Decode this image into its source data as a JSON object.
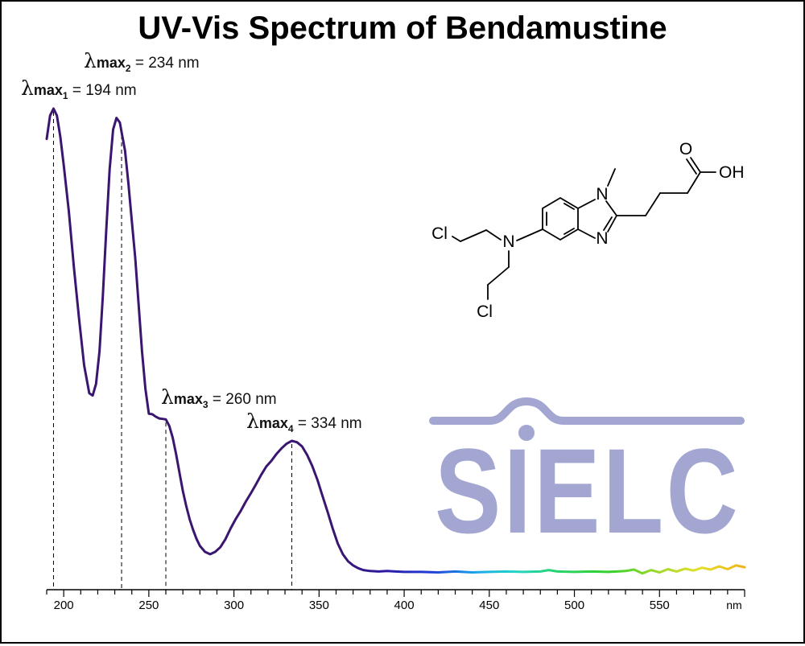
{
  "chart_data": {
    "type": "line",
    "title": "UV-Vis Spectrum of Bendamustine",
    "xlabel": "nm",
    "ylabel": "",
    "xlim": [
      190,
      600
    ],
    "ylim": [
      0,
      1
    ],
    "x_ticks": [
      200,
      250,
      300,
      350,
      400,
      450,
      500,
      550
    ],
    "grid": false,
    "series": [
      {
        "x": [
          190,
          192,
          194,
          196,
          198,
          200,
          203,
          206,
          209,
          212,
          215,
          217,
          219,
          221,
          223,
          225,
          227,
          229,
          231,
          233,
          234,
          236,
          238,
          240,
          242,
          244,
          246,
          248,
          250,
          252,
          254,
          256,
          258,
          260,
          262,
          264,
          266,
          268,
          270,
          272,
          274,
          276,
          278,
          280,
          283,
          286,
          289,
          292,
          295,
          298,
          301,
          304,
          307,
          310,
          313,
          316,
          319,
          322,
          325,
          328,
          331,
          334,
          337,
          340,
          343,
          346,
          349,
          352,
          355,
          358,
          361,
          364,
          367,
          370,
          373,
          376,
          380,
          385,
          390,
          395,
          400,
          410,
          420,
          430,
          440,
          450,
          460,
          470,
          480,
          485,
          490,
          500,
          510,
          520,
          530,
          535,
          540,
          545,
          550,
          555,
          560,
          565,
          570,
          575,
          580,
          585,
          590,
          595,
          600
        ],
        "y": [
          0.935,
          0.985,
          1.0,
          0.985,
          0.94,
          0.88,
          0.78,
          0.66,
          0.55,
          0.45,
          0.39,
          0.385,
          0.41,
          0.48,
          0.6,
          0.74,
          0.87,
          0.955,
          0.98,
          0.97,
          0.95,
          0.91,
          0.84,
          0.76,
          0.68,
          0.58,
          0.48,
          0.4,
          0.346,
          0.345,
          0.34,
          0.336,
          0.335,
          0.334,
          0.32,
          0.295,
          0.26,
          0.22,
          0.18,
          0.148,
          0.12,
          0.097,
          0.078,
          0.063,
          0.05,
          0.045,
          0.05,
          0.06,
          0.077,
          0.1,
          0.12,
          0.138,
          0.158,
          0.176,
          0.195,
          0.215,
          0.233,
          0.245,
          0.26,
          0.272,
          0.282,
          0.288,
          0.285,
          0.276,
          0.258,
          0.234,
          0.205,
          0.17,
          0.136,
          0.1,
          0.068,
          0.045,
          0.03,
          0.021,
          0.015,
          0.011,
          0.009,
          0.008,
          0.009,
          0.008,
          0.007,
          0.007,
          0.006,
          0.008,
          0.006,
          0.007,
          0.008,
          0.007,
          0.008,
          0.011,
          0.008,
          0.007,
          0.008,
          0.007,
          0.009,
          0.012,
          0.004,
          0.011,
          0.006,
          0.013,
          0.008,
          0.014,
          0.01,
          0.016,
          0.012,
          0.019,
          0.013,
          0.021,
          0.017
        ]
      }
    ],
    "peaks": [
      {
        "label": "max",
        "sub": "1",
        "x": 194,
        "text": " = 194 nm"
      },
      {
        "label": "max",
        "sub": "2",
        "x": 234,
        "text": " = 234 nm"
      },
      {
        "label": "max",
        "sub": "3",
        "x": 260,
        "text": " = 260 nm"
      },
      {
        "label": "max",
        "sub": "4",
        "x": 334,
        "text": " = 334 nm"
      }
    ]
  },
  "lambda_symbol": "λ",
  "structure": {
    "atoms": [
      "O",
      "OH",
      "N",
      "N",
      "N",
      "Cl",
      "Cl"
    ]
  },
  "logo": {
    "text": "SIELC",
    "color": "#a3a6d1"
  }
}
